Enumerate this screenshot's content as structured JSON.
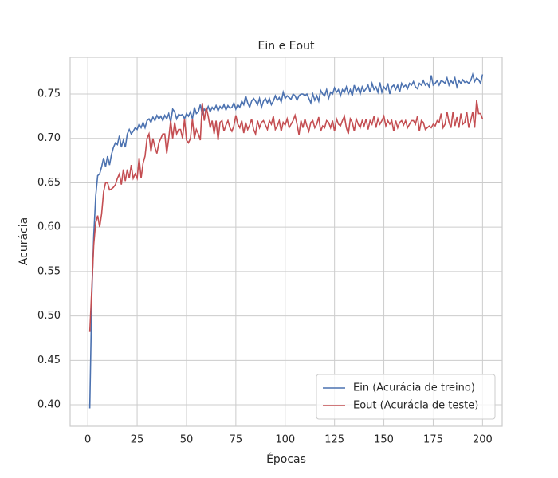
{
  "chart_data": {
    "type": "line",
    "title": "Ein e Eout",
    "xlabel": "Épocas",
    "ylabel": "Acurácia",
    "x": [
      1,
      2,
      3,
      4,
      5,
      6,
      7,
      8,
      9,
      10,
      11,
      12,
      13,
      14,
      15,
      16,
      17,
      18,
      19,
      20,
      21,
      22,
      23,
      24,
      25,
      26,
      27,
      28,
      29,
      30,
      31,
      32,
      33,
      34,
      35,
      36,
      37,
      38,
      39,
      40,
      41,
      42,
      43,
      44,
      45,
      46,
      47,
      48,
      49,
      50,
      51,
      52,
      53,
      54,
      55,
      56,
      57,
      58,
      59,
      60,
      61,
      62,
      63,
      64,
      65,
      66,
      67,
      68,
      69,
      70,
      71,
      72,
      73,
      74,
      75,
      76,
      77,
      78,
      79,
      80,
      81,
      82,
      83,
      84,
      85,
      86,
      87,
      88,
      89,
      90,
      91,
      92,
      93,
      94,
      95,
      96,
      97,
      98,
      99,
      100,
      101,
      102,
      103,
      104,
      105,
      106,
      107,
      108,
      109,
      110,
      111,
      112,
      113,
      114,
      115,
      116,
      117,
      118,
      119,
      120,
      121,
      122,
      123,
      124,
      125,
      126,
      127,
      128,
      129,
      130,
      131,
      132,
      133,
      134,
      135,
      136,
      137,
      138,
      139,
      140,
      141,
      142,
      143,
      144,
      145,
      146,
      147,
      148,
      149,
      150,
      151,
      152,
      153,
      154,
      155,
      156,
      157,
      158,
      159,
      160,
      161,
      162,
      163,
      164,
      165,
      166,
      167,
      168,
      169,
      170,
      171,
      172,
      173,
      174,
      175,
      176,
      177,
      178,
      179,
      180,
      181,
      182,
      183,
      184,
      185,
      186,
      187,
      188,
      189,
      190,
      191,
      192,
      193,
      194,
      195,
      196,
      197,
      198,
      199,
      200
    ],
    "series": [
      {
        "name": "Ein (Acurácia de treino)",
        "color": "#4c72b0",
        "values": [
          0.396,
          0.52,
          0.59,
          0.635,
          0.658,
          0.66,
          0.668,
          0.678,
          0.668,
          0.68,
          0.67,
          0.682,
          0.69,
          0.695,
          0.693,
          0.703,
          0.69,
          0.698,
          0.69,
          0.705,
          0.71,
          0.705,
          0.708,
          0.712,
          0.71,
          0.716,
          0.712,
          0.718,
          0.712,
          0.72,
          0.722,
          0.718,
          0.724,
          0.72,
          0.726,
          0.722,
          0.725,
          0.72,
          0.726,
          0.722,
          0.728,
          0.718,
          0.733,
          0.73,
          0.722,
          0.727,
          0.726,
          0.727,
          0.722,
          0.728,
          0.725,
          0.73,
          0.722,
          0.735,
          0.728,
          0.73,
          0.738,
          0.727,
          0.733,
          0.73,
          0.736,
          0.73,
          0.735,
          0.732,
          0.737,
          0.731,
          0.736,
          0.733,
          0.738,
          0.732,
          0.737,
          0.734,
          0.735,
          0.74,
          0.733,
          0.738,
          0.735,
          0.742,
          0.738,
          0.748,
          0.74,
          0.735,
          0.742,
          0.745,
          0.742,
          0.738,
          0.745,
          0.735,
          0.742,
          0.745,
          0.74,
          0.745,
          0.738,
          0.742,
          0.748,
          0.743,
          0.746,
          0.741,
          0.752,
          0.745,
          0.748,
          0.746,
          0.744,
          0.75,
          0.748,
          0.743,
          0.748,
          0.75,
          0.75,
          0.748,
          0.75,
          0.745,
          0.74,
          0.75,
          0.743,
          0.748,
          0.742,
          0.754,
          0.75,
          0.748,
          0.755,
          0.745,
          0.752,
          0.75,
          0.757,
          0.752,
          0.755,
          0.748,
          0.755,
          0.752,
          0.758,
          0.75,
          0.755,
          0.748,
          0.76,
          0.753,
          0.757,
          0.75,
          0.758,
          0.753,
          0.756,
          0.76,
          0.752,
          0.762,
          0.755,
          0.758,
          0.752,
          0.763,
          0.752,
          0.758,
          0.755,
          0.762,
          0.75,
          0.758,
          0.76,
          0.755,
          0.76,
          0.752,
          0.762,
          0.758,
          0.76,
          0.756,
          0.762,
          0.76,
          0.764,
          0.758,
          0.756,
          0.762,
          0.76,
          0.765,
          0.76,
          0.762,
          0.758,
          0.771,
          0.76,
          0.762,
          0.765,
          0.76,
          0.765,
          0.764,
          0.762,
          0.768,
          0.76,
          0.765,
          0.762,
          0.768,
          0.758,
          0.765,
          0.762,
          0.766,
          0.763,
          0.764,
          0.762,
          0.765,
          0.772,
          0.764,
          0.768,
          0.766,
          0.762,
          0.772
        ]
      },
      {
        "name": "Eout (Acurácia de teste)",
        "color": "#c44e52",
        "values": [
          0.482,
          0.53,
          0.58,
          0.605,
          0.613,
          0.6,
          0.615,
          0.64,
          0.65,
          0.65,
          0.642,
          0.643,
          0.645,
          0.648,
          0.655,
          0.66,
          0.648,
          0.665,
          0.652,
          0.665,
          0.655,
          0.67,
          0.655,
          0.66,
          0.655,
          0.678,
          0.655,
          0.672,
          0.68,
          0.7,
          0.705,
          0.685,
          0.7,
          0.69,
          0.683,
          0.695,
          0.7,
          0.705,
          0.705,
          0.683,
          0.7,
          0.72,
          0.7,
          0.718,
          0.705,
          0.71,
          0.71,
          0.7,
          0.722,
          0.698,
          0.695,
          0.7,
          0.722,
          0.7,
          0.71,
          0.705,
          0.698,
          0.74,
          0.72,
          0.735,
          0.725,
          0.712,
          0.72,
          0.705,
          0.72,
          0.698,
          0.718,
          0.72,
          0.708,
          0.715,
          0.72,
          0.712,
          0.708,
          0.714,
          0.726,
          0.716,
          0.712,
          0.72,
          0.706,
          0.718,
          0.71,
          0.715,
          0.722,
          0.71,
          0.705,
          0.72,
          0.712,
          0.718,
          0.72,
          0.715,
          0.71,
          0.72,
          0.716,
          0.725,
          0.71,
          0.714,
          0.72,
          0.708,
          0.718,
          0.715,
          0.722,
          0.712,
          0.716,
          0.72,
          0.726,
          0.716,
          0.704,
          0.72,
          0.712,
          0.722,
          0.714,
          0.708,
          0.718,
          0.72,
          0.712,
          0.716,
          0.724,
          0.708,
          0.714,
          0.712,
          0.72,
          0.718,
          0.712,
          0.72,
          0.708,
          0.722,
          0.716,
          0.714,
          0.72,
          0.725,
          0.712,
          0.705,
          0.722,
          0.718,
          0.708,
          0.722,
          0.716,
          0.712,
          0.72,
          0.714,
          0.722,
          0.71,
          0.72,
          0.716,
          0.725,
          0.712,
          0.722,
          0.716,
          0.72,
          0.725,
          0.714,
          0.72,
          0.716,
          0.72,
          0.708,
          0.72,
          0.712,
          0.718,
          0.72,
          0.715,
          0.72,
          0.712,
          0.716,
          0.72,
          0.72,
          0.716,
          0.725,
          0.708,
          0.72,
          0.718,
          0.71,
          0.712,
          0.714,
          0.712,
          0.716,
          0.714,
          0.72,
          0.718,
          0.728,
          0.712,
          0.716,
          0.73,
          0.718,
          0.712,
          0.73,
          0.714,
          0.724,
          0.712,
          0.728,
          0.716,
          0.718,
          0.73,
          0.712,
          0.72,
          0.73,
          0.712,
          0.743,
          0.728,
          0.728,
          0.722
        ]
      }
    ],
    "xlim": [
      -8.95,
      209.95
    ],
    "ylim": [
      0.3758,
      0.7913
    ],
    "xticks": [
      0,
      25,
      50,
      75,
      100,
      125,
      150,
      175,
      200
    ],
    "yticks": [
      {
        "value": 0.4,
        "label": "0.40"
      },
      {
        "value": 0.45,
        "label": "0.45"
      },
      {
        "value": 0.5,
        "label": "0.50"
      },
      {
        "value": 0.55,
        "label": "0.55"
      },
      {
        "value": 0.6,
        "label": "0.60"
      },
      {
        "value": 0.65,
        "label": "0.65"
      },
      {
        "value": 0.7,
        "label": "0.70"
      },
      {
        "value": 0.75,
        "label": "0.75"
      }
    ],
    "grid": true,
    "legend": "lower right"
  }
}
